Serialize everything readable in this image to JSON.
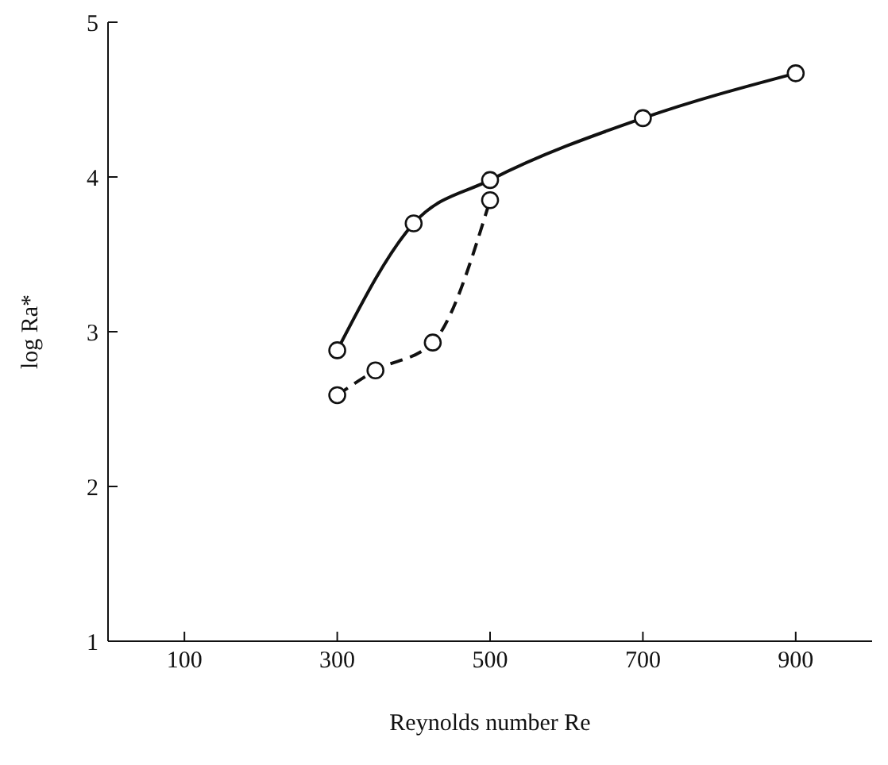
{
  "chart_data": {
    "type": "line",
    "xlabel": "Reynolds number Re",
    "ylabel": "log Ra*",
    "xlim": [
      0,
      1000
    ],
    "xticks": [
      100,
      300,
      500,
      700,
      900
    ],
    "ylim": [
      1,
      5
    ],
    "yticks": [
      1,
      2,
      3,
      4,
      5
    ],
    "grid": false,
    "legend": false,
    "marker": "circle",
    "series": [
      {
        "color": "#111111",
        "line_style": "solid",
        "x": [
          300,
          400,
          500,
          700,
          900
        ],
        "values": [
          2.88,
          3.7,
          3.98,
          4.38,
          4.67
        ]
      },
      {
        "color": "#111111",
        "line_style": "dashed",
        "x": [
          300,
          350,
          425,
          500
        ],
        "values": [
          2.59,
          2.75,
          2.93,
          3.85
        ]
      }
    ]
  }
}
